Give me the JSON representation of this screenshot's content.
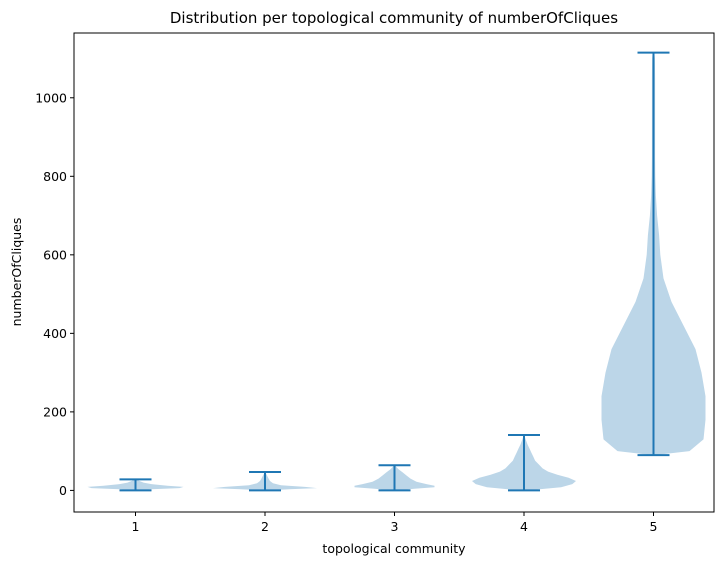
{
  "chart_data": {
    "type": "violin",
    "title": "Distribution per topological community of numberOfCliques",
    "xlabel": "topological community",
    "ylabel": "numberOfCliques",
    "categories": [
      "1",
      "2",
      "3",
      "4",
      "5"
    ],
    "ylim": [
      -55,
      1165
    ],
    "yticks": [
      0,
      200,
      400,
      600,
      800,
      1000
    ],
    "grid": false,
    "violins": [
      {
        "category": "1",
        "min": 0,
        "max": 28,
        "density": [
          [
            0,
            0.005
          ],
          [
            3,
            0.08
          ],
          [
            6,
            0.22
          ],
          [
            9,
            0.24
          ],
          [
            12,
            0.16
          ],
          [
            16,
            0.08
          ],
          [
            20,
            0.04
          ],
          [
            24,
            0.02
          ],
          [
            28,
            0.005
          ]
        ]
      },
      {
        "category": "2",
        "min": 0,
        "max": 47,
        "density": [
          [
            0,
            0.02
          ],
          [
            3,
            0.12
          ],
          [
            6,
            0.26
          ],
          [
            9,
            0.2
          ],
          [
            13,
            0.08
          ],
          [
            18,
            0.04
          ],
          [
            24,
            0.025
          ],
          [
            30,
            0.018
          ],
          [
            36,
            0.012
          ],
          [
            42,
            0.006
          ],
          [
            47,
            0.002
          ]
        ]
      },
      {
        "category": "3",
        "min": 0,
        "max": 64,
        "density": [
          [
            0,
            0.02
          ],
          [
            4,
            0.1
          ],
          [
            8,
            0.2
          ],
          [
            12,
            0.2
          ],
          [
            16,
            0.16
          ],
          [
            22,
            0.11
          ],
          [
            30,
            0.08
          ],
          [
            38,
            0.06
          ],
          [
            46,
            0.04
          ],
          [
            54,
            0.02
          ],
          [
            60,
            0.008
          ],
          [
            64,
            0.002
          ]
        ]
      },
      {
        "category": "4",
        "min": 0,
        "max": 141,
        "density": [
          [
            0,
            0.02
          ],
          [
            8,
            0.2
          ],
          [
            16,
            0.26
          ],
          [
            24,
            0.28
          ],
          [
            32,
            0.24
          ],
          [
            40,
            0.18
          ],
          [
            48,
            0.13
          ],
          [
            56,
            0.1
          ],
          [
            66,
            0.08
          ],
          [
            76,
            0.06
          ],
          [
            86,
            0.05
          ],
          [
            96,
            0.04
          ],
          [
            106,
            0.03
          ],
          [
            116,
            0.02
          ],
          [
            126,
            0.012
          ],
          [
            134,
            0.006
          ],
          [
            141,
            0.002
          ]
        ]
      },
      {
        "category": "5",
        "min": 90,
        "max": 1115,
        "density": [
          [
            90,
            0.005
          ],
          [
            100,
            0.18
          ],
          [
            130,
            0.25
          ],
          [
            180,
            0.26
          ],
          [
            240,
            0.26
          ],
          [
            300,
            0.24
          ],
          [
            360,
            0.21
          ],
          [
            420,
            0.15
          ],
          [
            480,
            0.09
          ],
          [
            540,
            0.05
          ],
          [
            600,
            0.034
          ],
          [
            650,
            0.028
          ],
          [
            700,
            0.018
          ],
          [
            750,
            0.012
          ],
          [
            800,
            0.009
          ],
          [
            850,
            0.008
          ],
          [
            900,
            0.008
          ],
          [
            950,
            0.008
          ],
          [
            1000,
            0.008
          ],
          [
            1050,
            0.008
          ],
          [
            1100,
            0.007
          ],
          [
            1115,
            0.004
          ]
        ]
      }
    ],
    "colors": {
      "body": "#bcd6e8",
      "lines": "#1f77b4"
    }
  }
}
